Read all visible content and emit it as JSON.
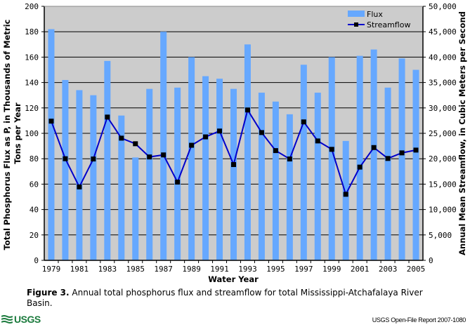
{
  "chart_data": {
    "type": "bar+line",
    "title": "",
    "xlabel": "Water Year",
    "ylabel_left": "Total Phosphorus Flux as P, in Thousands of Metric Tons per Year",
    "ylabel_right": "Annual Mean Streamflow, in Cubic Meters per Second",
    "categories": [
      "1979",
      "1980",
      "1981",
      "1982",
      "1983",
      "1984",
      "1985",
      "1986",
      "1987",
      "1988",
      "1989",
      "1990",
      "1991",
      "1992",
      "1993",
      "1994",
      "1995",
      "1996",
      "1997",
      "1998",
      "1999",
      "2000",
      "2001",
      "2002",
      "2003",
      "2004",
      "2005"
    ],
    "x_tick_labels": [
      "1979",
      "1981",
      "1983",
      "1985",
      "1987",
      "1989",
      "1991",
      "1993",
      "1995",
      "1997",
      "1999",
      "2001",
      "2003",
      "2005"
    ],
    "ylim_left": [
      0,
      200
    ],
    "yticks_left": [
      "0",
      "20",
      "40",
      "60",
      "80",
      "100",
      "120",
      "140",
      "160",
      "180",
      "200"
    ],
    "ylim_right": [
      0,
      50000
    ],
    "yticks_right": [
      "0",
      "5,000",
      "10,000",
      "15,000",
      "20,000",
      "25,000",
      "30,000",
      "35,000",
      "40,000",
      "45,000",
      "50,000"
    ],
    "grid": true,
    "legend_position": "top-right",
    "series": [
      {
        "name": "Flux",
        "type": "bar",
        "axis": "left",
        "color": "#66a8ff",
        "values": [
          182,
          142,
          134,
          130,
          157,
          114,
          81,
          135,
          180,
          136,
          160,
          145,
          143,
          135,
          170,
          132,
          125,
          115,
          154,
          132,
          160,
          94,
          161,
          166,
          136,
          159,
          150
        ]
      },
      {
        "name": "Streamflow",
        "type": "line",
        "axis": "right",
        "color": "#0000cc",
        "marker_color": "#000000",
        "values": [
          27400,
          20000,
          14450,
          19950,
          28200,
          24050,
          22950,
          20350,
          20750,
          15400,
          22650,
          24300,
          25450,
          18850,
          29600,
          25150,
          21600,
          19950,
          27250,
          23500,
          21850,
          13000,
          18350,
          22200,
          20050,
          21150,
          21700
        ]
      }
    ]
  },
  "caption": {
    "label": "Figure 3.",
    "text": " Annual total phosphorus flux and streamflow for total Mississippi-Atchafalaya River Basin."
  },
  "footer": {
    "logo": "USGS",
    "report": "USGS Open-File Report 2007-1080"
  },
  "colors": {
    "plot_background": "#cccccc",
    "bar": "#66a8ff",
    "line": "#0000cc",
    "marker": "#000000",
    "logo": "#1a7a3c"
  }
}
